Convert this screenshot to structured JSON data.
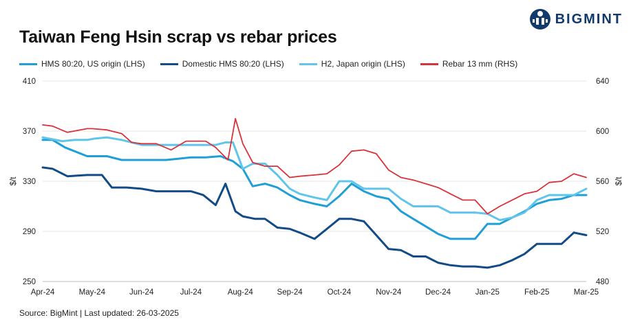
{
  "brand": {
    "name": "BIGMINT",
    "logo_icon": "bigmint-logo-icon"
  },
  "chart_data": {
    "type": "line",
    "title": "Taiwan Feng Hsin scrap vs rebar prices",
    "ylabel": "$/t",
    "y2label": "$/t",
    "ylim": [
      250,
      410
    ],
    "y2lim": [
      480,
      640
    ],
    "yticks": [
      "410",
      "370",
      "330",
      "290",
      "250"
    ],
    "y2ticks": [
      "640",
      "600",
      "560",
      "520",
      "480"
    ],
    "x_ticks": [
      "Apr-24",
      "May-24",
      "Jun-24",
      "Jul-24",
      "Aug-24",
      "Sep-24",
      "Oct-24",
      "Nov-24",
      "Dec-24",
      "Jan-25",
      "Feb-25",
      "Mar-25"
    ],
    "x_range": [
      0,
      11
    ],
    "series": [
      {
        "name": "HMS 80:20, US origin (LHS)",
        "axis": "left",
        "color": "#1f9fd6",
        "x": [
          0,
          0.2,
          0.45,
          0.9,
          1.0,
          1.3,
          1.6,
          2.0,
          2.5,
          3.0,
          3.3,
          3.6,
          3.85,
          4.05,
          4.25,
          4.5,
          4.75,
          5.0,
          5.2,
          5.5,
          5.75,
          6.0,
          6.25,
          6.5,
          6.75,
          7.0,
          7.25,
          7.5,
          7.75,
          8.0,
          8.25,
          8.5,
          8.75,
          9.0,
          9.25,
          9.5,
          9.75,
          10.0,
          10.25,
          10.5,
          10.75,
          11.0
        ],
        "values": [
          363,
          363,
          357,
          350,
          350,
          350,
          347,
          347,
          347,
          349,
          349,
          350,
          346,
          340,
          326,
          328,
          325,
          319,
          315,
          312,
          310,
          318,
          328,
          322,
          318,
          316,
          306,
          300,
          294,
          288,
          284,
          284,
          284,
          296,
          296,
          301,
          306,
          312,
          315,
          316,
          319,
          319
        ]
      },
      {
        "name": "Domestic HMS 80:20 (LHS)",
        "axis": "left",
        "color": "#124b86",
        "x": [
          0,
          0.2,
          0.5,
          0.9,
          1.0,
          1.2,
          1.4,
          1.7,
          2.0,
          2.3,
          2.6,
          2.8,
          3.0,
          3.25,
          3.5,
          3.7,
          3.9,
          4.05,
          4.3,
          4.5,
          4.75,
          5.0,
          5.2,
          5.5,
          5.75,
          6.0,
          6.25,
          6.5,
          6.75,
          7.0,
          7.25,
          7.5,
          7.75,
          8.0,
          8.25,
          8.5,
          8.75,
          9.0,
          9.25,
          9.5,
          9.75,
          10.0,
          10.25,
          10.5,
          10.75,
          11.0
        ],
        "values": [
          341,
          340,
          334,
          335,
          335,
          335,
          325,
          325,
          324,
          322,
          322,
          322,
          322,
          319,
          311,
          328,
          306,
          302,
          300,
          300,
          293,
          292,
          289,
          284,
          292,
          300,
          300,
          298,
          287,
          276,
          275,
          270,
          270,
          265,
          263,
          262,
          262,
          261,
          263,
          267,
          272,
          280,
          280,
          280,
          289,
          287
        ]
      },
      {
        "name": "H2, Japan origin (LHS)",
        "axis": "left",
        "color": "#5fc5ea",
        "x": [
          0,
          0.4,
          0.65,
          0.9,
          1.05,
          1.3,
          1.6,
          2.0,
          2.5,
          3.0,
          3.3,
          3.5,
          3.7,
          3.85,
          4.05,
          4.25,
          4.5,
          4.75,
          5.0,
          5.2,
          5.5,
          5.75,
          6.0,
          6.25,
          6.5,
          6.75,
          7.0,
          7.25,
          7.5,
          7.75,
          8.0,
          8.25,
          8.5,
          8.75,
          9.0,
          9.25,
          9.5,
          9.75,
          10.0,
          10.25,
          10.5,
          10.75,
          11.0
        ],
        "values": [
          365,
          362,
          363,
          363,
          364,
          365,
          363,
          359,
          359,
          359,
          359,
          359,
          361,
          361,
          340,
          344,
          344,
          335,
          324,
          320,
          317,
          315,
          330,
          330,
          324,
          324,
          324,
          316,
          310,
          310,
          310,
          305,
          305,
          305,
          304,
          299,
          301,
          305,
          315,
          319,
          319,
          319,
          324
        ]
      },
      {
        "name": "Rebar 13 mm (RHS)",
        "axis": "right",
        "color": "#d9323a",
        "x": [
          0,
          0.2,
          0.5,
          0.9,
          1.0,
          1.3,
          1.6,
          1.8,
          2.0,
          2.3,
          2.6,
          2.9,
          3.1,
          3.3,
          3.5,
          3.75,
          3.9,
          4.05,
          4.25,
          4.5,
          4.75,
          5.0,
          5.2,
          5.5,
          5.75,
          6.0,
          6.25,
          6.5,
          6.75,
          7.0,
          7.25,
          7.5,
          7.75,
          8.0,
          8.25,
          8.5,
          8.75,
          9.0,
          9.25,
          9.5,
          9.75,
          10.0,
          10.25,
          10.5,
          10.75,
          11.0
        ],
        "values": [
          605,
          604,
          599,
          602,
          602,
          601,
          598,
          591,
          590,
          590,
          585,
          592,
          592,
          592,
          587,
          577,
          610,
          590,
          575,
          572,
          572,
          563,
          564,
          565,
          566,
          573,
          584,
          585,
          582,
          569,
          563,
          561,
          558,
          555,
          550,
          545,
          545,
          534,
          540,
          545,
          550,
          552,
          559,
          560,
          566,
          563
        ]
      }
    ]
  },
  "footer": {
    "source": "Source: BigMint | Last updated: 26-03-2025"
  }
}
